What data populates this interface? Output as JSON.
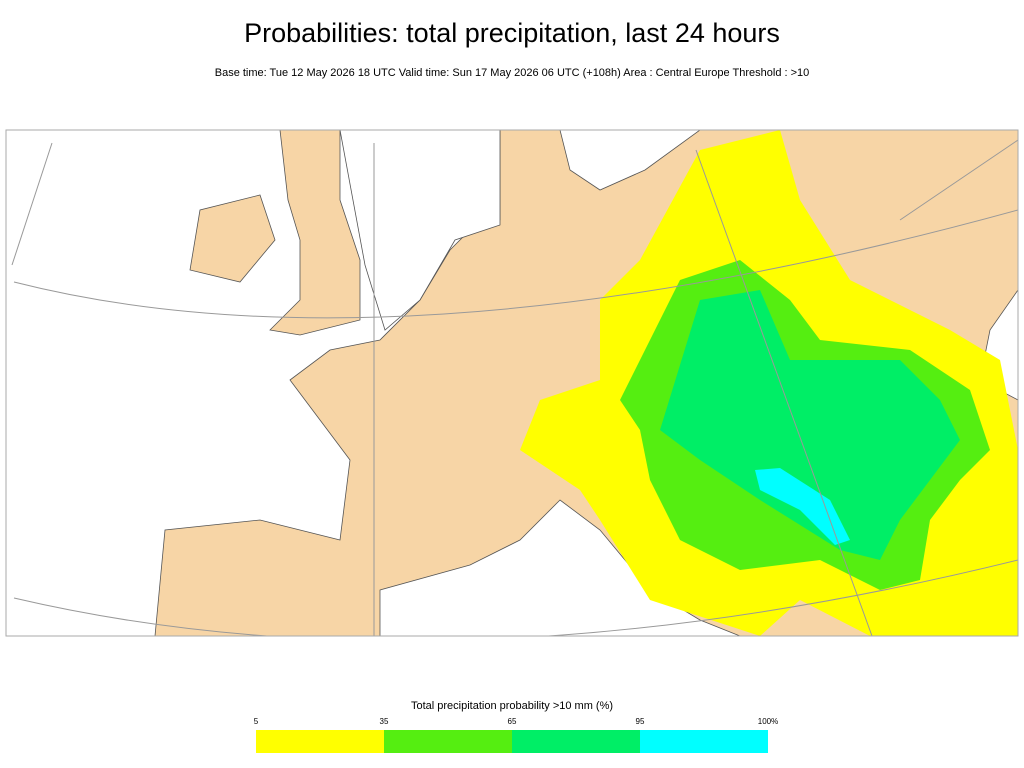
{
  "header": {
    "title": "Probabilities:  total precipitation, last 24 hours",
    "subtitle": "Base time: Tue 12 May 2026 18 UTC Valid time: Sun 17 May 2026 06 UTC (+108h) Area : Central Europe Threshold : >10"
  },
  "legend": {
    "title": "Total precipitation probability >10 mm (%)",
    "labels": [
      "5",
      "35",
      "65",
      "95",
      "100%"
    ],
    "colors": [
      "#ffff00",
      "#55ee11",
      "#00ee66",
      "#00ffff"
    ]
  }
}
